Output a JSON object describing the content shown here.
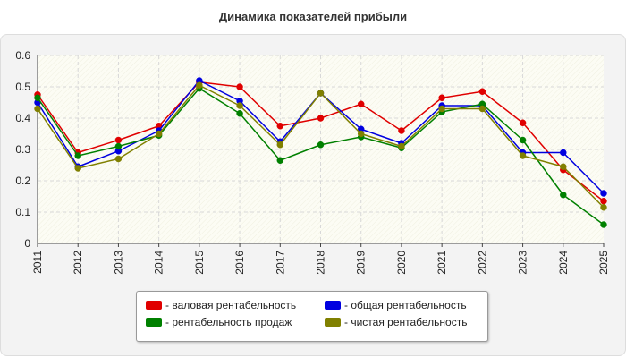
{
  "chart_data": {
    "type": "line",
    "title": "Динамика показателей прибыли",
    "categories": [
      "2011",
      "2012",
      "2013",
      "2014",
      "2015",
      "2016",
      "2017",
      "2018",
      "2019",
      "2020",
      "2021",
      "2022",
      "2023",
      "2024",
      "2025"
    ],
    "ylim": [
      0,
      0.6
    ],
    "yticks": [
      "0",
      "0.1",
      "0.2",
      "0.3",
      "0.4",
      "0.5",
      "0.6"
    ],
    "grid": true,
    "legend_position": "bottom-center",
    "series": [
      {
        "name": "- валовая рентабельность",
        "color": "#e00000",
        "values": [
          0.475,
          0.29,
          0.33,
          0.375,
          0.515,
          0.5,
          0.375,
          0.4,
          0.445,
          0.36,
          0.465,
          0.485,
          0.385,
          0.235,
          0.135
        ]
      },
      {
        "name": "- общая рентабельность",
        "color": "#0000e0",
        "values": [
          0.45,
          0.245,
          0.295,
          0.36,
          0.52,
          0.455,
          0.325,
          0.48,
          0.365,
          0.32,
          0.44,
          0.44,
          0.29,
          0.29,
          0.16
        ]
      },
      {
        "name": "- рентабельность продаж",
        "color": "#008000",
        "values": [
          0.465,
          0.28,
          0.31,
          0.345,
          0.495,
          0.415,
          0.265,
          0.315,
          0.34,
          0.305,
          0.42,
          0.445,
          0.33,
          0.155,
          0.06
        ]
      },
      {
        "name": "- чистая рентабельность",
        "color": "#808000",
        "values": [
          0.43,
          0.24,
          0.27,
          0.35,
          0.505,
          0.44,
          0.315,
          0.48,
          0.35,
          0.31,
          0.43,
          0.43,
          0.28,
          0.245,
          0.115
        ]
      }
    ]
  }
}
